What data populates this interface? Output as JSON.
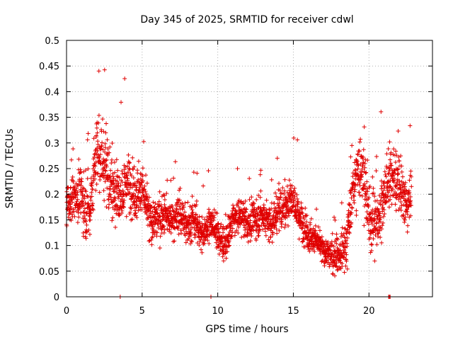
{
  "chart_data": {
    "type": "scatter",
    "title": "Day 345 of 2025, SRMTID for receiver cdwl",
    "xlabel": "GPS time / hours",
    "ylabel": "SRMTID / TECUs",
    "xlim": [
      0,
      24.2
    ],
    "ylim": [
      0,
      0.5
    ],
    "xticks": [
      0,
      5,
      10,
      15,
      20
    ],
    "xtick_labels": [
      "0",
      "5",
      "10",
      "15",
      "20"
    ],
    "yticks": [
      0,
      0.05,
      0.1,
      0.15,
      0.2,
      0.25,
      0.3,
      0.35,
      0.4,
      0.45,
      0.5
    ],
    "ytick_labels": [
      "0",
      "0.05",
      "0.1",
      "0.15",
      "0.2",
      "0.25",
      "0.3",
      "0.35",
      "0.4",
      "0.45",
      "0.5"
    ],
    "grid": true,
    "marker": "+",
    "color": "#e00000",
    "series": [
      {
        "name": "SRMTID",
        "x_start": 0.0,
        "x_end": 22.8,
        "trend": {
          "x": [
            0.0,
            0.5,
            1.0,
            1.5,
            2.0,
            2.5,
            3.0,
            3.5,
            4.0,
            4.5,
            5.0,
            5.5,
            6.0,
            6.5,
            7.0,
            7.5,
            8.0,
            8.5,
            9.0,
            9.5,
            10.0,
            10.5,
            11.0,
            11.5,
            12.0,
            12.5,
            13.0,
            13.5,
            14.0,
            14.5,
            15.0,
            15.5,
            16.0,
            16.5,
            17.0,
            17.5,
            18.0,
            18.5,
            19.0,
            19.5,
            20.0,
            20.5,
            21.0,
            21.5,
            22.0,
            22.5,
            22.8
          ],
          "y": [
            0.17,
            0.2,
            0.19,
            0.16,
            0.29,
            0.26,
            0.22,
            0.19,
            0.23,
            0.2,
            0.21,
            0.15,
            0.15,
            0.16,
            0.15,
            0.16,
            0.14,
            0.15,
            0.12,
            0.15,
            0.12,
            0.1,
            0.15,
            0.16,
            0.14,
            0.15,
            0.16,
            0.14,
            0.17,
            0.18,
            0.19,
            0.15,
            0.12,
            0.11,
            0.09,
            0.08,
            0.08,
            0.1,
            0.22,
            0.26,
            0.15,
            0.14,
            0.2,
            0.24,
            0.22,
            0.17,
            0.21
          ]
        },
        "spread": {
          "x": [
            0.0,
            2.0,
            4.0,
            6.0,
            10.0,
            15.0,
            17.0,
            19.5,
            22.0,
            22.8
          ],
          "y": [
            0.05,
            0.09,
            0.07,
            0.05,
            0.04,
            0.05,
            0.03,
            0.08,
            0.07,
            0.06
          ]
        },
        "point_count": 2600,
        "zero_points_x": [
          3.55,
          9.55,
          21.3,
          21.35,
          21.4
        ]
      }
    ]
  }
}
